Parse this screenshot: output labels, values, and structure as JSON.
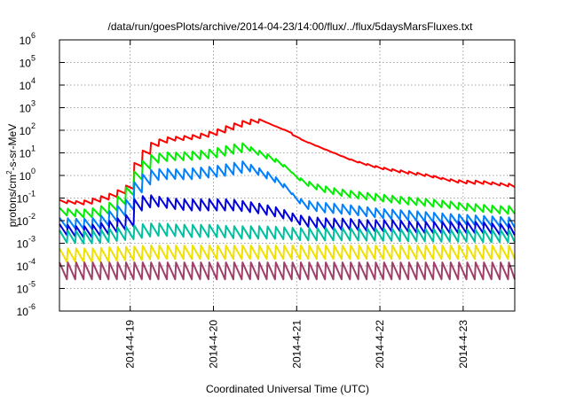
{
  "chart_data": {
    "type": "line",
    "title": "/data/run/goesPlots/archive/2014-04-23/14:00/flux/../flux/5daysMarsFluxes.txt",
    "xlabel": "Coordinated Universal Time (UTC)",
    "ylabel_base": "protons/cm",
    "ylabel_sup": "2",
    "ylabel_rest": "-s-sr-MeV",
    "yscale": "log",
    "ylim_exp": [
      -6,
      6
    ],
    "xlim": [
      -0.85,
      4.62
    ],
    "x_ticks": [
      "2014-4-19",
      "2014-4-20",
      "2014-4-21",
      "2014-4-22",
      "2014-4-23"
    ],
    "y_ticks": [
      "10",
      "10",
      "10",
      "10",
      "10",
      "10",
      "10",
      "10",
      "10",
      "10",
      "10",
      "10",
      "10"
    ],
    "y_tick_exps": [
      "-6",
      "-5",
      "-4",
      "-3",
      "-2",
      "-1",
      "0",
      "1",
      "2",
      "3",
      "4",
      "5",
      "6"
    ],
    "grid": true,
    "series": [
      {
        "color": "#ff0000",
        "points": [
          [
            -0.85,
            0.07
          ],
          [
            -0.6,
            0.06
          ],
          [
            -0.4,
            0.09
          ],
          [
            -0.2,
            0.15
          ],
          [
            -0.05,
            0.3
          ],
          [
            0.05,
            3
          ],
          [
            0.2,
            20
          ],
          [
            0.4,
            40
          ],
          [
            0.6,
            45
          ],
          [
            0.8,
            55
          ],
          [
            1.0,
            80
          ],
          [
            1.2,
            150
          ],
          [
            1.4,
            250
          ],
          [
            1.55,
            260
          ],
          [
            1.7,
            150
          ],
          [
            1.85,
            90
          ],
          [
            2.0,
            40
          ],
          [
            2.2,
            20
          ],
          [
            2.4,
            10
          ],
          [
            2.6,
            5
          ],
          [
            2.8,
            3
          ],
          [
            3.0,
            2
          ],
          [
            3.2,
            1.5
          ],
          [
            3.4,
            1.2
          ],
          [
            3.6,
            0.9
          ],
          [
            3.8,
            0.6
          ],
          [
            4.0,
            0.5
          ],
          [
            4.2,
            0.5
          ],
          [
            4.4,
            0.4
          ],
          [
            4.62,
            0.35
          ]
        ]
      },
      {
        "color": "#00ee00",
        "points": [
          [
            -0.85,
            0.025
          ],
          [
            -0.6,
            0.02
          ],
          [
            -0.4,
            0.025
          ],
          [
            -0.2,
            0.05
          ],
          [
            -0.05,
            0.2
          ],
          [
            0.05,
            1
          ],
          [
            0.2,
            5
          ],
          [
            0.4,
            7
          ],
          [
            0.6,
            7
          ],
          [
            0.8,
            8
          ],
          [
            1.0,
            10
          ],
          [
            1.2,
            15
          ],
          [
            1.35,
            18
          ],
          [
            1.5,
            10
          ],
          [
            1.7,
            5
          ],
          [
            1.85,
            2
          ],
          [
            2.0,
            0.6
          ],
          [
            2.2,
            0.3
          ],
          [
            2.4,
            0.2
          ],
          [
            2.6,
            0.15
          ],
          [
            2.8,
            0.12
          ],
          [
            3.0,
            0.1
          ],
          [
            3.2,
            0.08
          ],
          [
            3.4,
            0.07
          ],
          [
            3.6,
            0.06
          ],
          [
            3.8,
            0.05
          ],
          [
            4.0,
            0.04
          ],
          [
            4.2,
            0.035
          ],
          [
            4.4,
            0.03
          ],
          [
            4.62,
            0.03
          ]
        ]
      },
      {
        "color": "#0080ff",
        "points": [
          [
            -0.85,
            0.008
          ],
          [
            -0.6,
            0.007
          ],
          [
            -0.4,
            0.008
          ],
          [
            -0.2,
            0.02
          ],
          [
            -0.05,
            0.05
          ],
          [
            0.05,
            0.3
          ],
          [
            0.2,
            1.0
          ],
          [
            0.4,
            1.2
          ],
          [
            0.6,
            1.1
          ],
          [
            0.8,
            1.3
          ],
          [
            1.0,
            1.5
          ],
          [
            1.2,
            2.0
          ],
          [
            1.35,
            2.5
          ],
          [
            1.5,
            1.5
          ],
          [
            1.7,
            0.7
          ],
          [
            1.85,
            0.25
          ],
          [
            2.0,
            0.06
          ],
          [
            2.2,
            0.04
          ],
          [
            2.4,
            0.035
          ],
          [
            2.6,
            0.03
          ],
          [
            2.8,
            0.025
          ],
          [
            3.0,
            0.02
          ],
          [
            3.2,
            0.018
          ],
          [
            3.4,
            0.016
          ],
          [
            3.6,
            0.014
          ],
          [
            3.8,
            0.012
          ],
          [
            4.0,
            0.011
          ],
          [
            4.2,
            0.01
          ],
          [
            4.4,
            0.009
          ],
          [
            4.62,
            0.008
          ]
        ]
      },
      {
        "color": "#0000dd",
        "points": [
          [
            -0.85,
            0.004
          ],
          [
            -0.6,
            0.003
          ],
          [
            -0.4,
            0.004
          ],
          [
            -0.2,
            0.006
          ],
          [
            -0.05,
            0.01
          ],
          [
            0.05,
            0.05
          ],
          [
            0.2,
            0.08
          ],
          [
            0.4,
            0.06
          ],
          [
            0.6,
            0.05
          ],
          [
            0.8,
            0.05
          ],
          [
            1.0,
            0.05
          ],
          [
            1.2,
            0.05
          ],
          [
            1.4,
            0.04
          ],
          [
            1.6,
            0.03
          ],
          [
            1.8,
            0.02
          ],
          [
            2.0,
            0.01
          ],
          [
            2.2,
            0.008
          ],
          [
            2.4,
            0.007
          ],
          [
            2.6,
            0.007
          ],
          [
            2.8,
            0.006
          ],
          [
            3.0,
            0.006
          ],
          [
            3.2,
            0.006
          ],
          [
            3.4,
            0.005
          ],
          [
            3.6,
            0.005
          ],
          [
            3.8,
            0.005
          ],
          [
            4.0,
            0.005
          ],
          [
            4.2,
            0.005
          ],
          [
            4.4,
            0.004
          ],
          [
            4.62,
            0.004
          ]
        ]
      },
      {
        "color": "#00c0a0",
        "points": [
          [
            -0.85,
            0.002
          ],
          [
            -0.6,
            0.0018
          ],
          [
            -0.4,
            0.002
          ],
          [
            -0.2,
            0.0025
          ],
          [
            0.0,
            0.003
          ],
          [
            0.2,
            0.004
          ],
          [
            0.4,
            0.004
          ],
          [
            0.6,
            0.0035
          ],
          [
            0.8,
            0.0035
          ],
          [
            1.0,
            0.0035
          ],
          [
            1.2,
            0.003
          ],
          [
            1.4,
            0.003
          ],
          [
            1.6,
            0.003
          ],
          [
            1.8,
            0.0028
          ],
          [
            2.0,
            0.0025
          ],
          [
            2.2,
            0.0025
          ],
          [
            2.4,
            0.0025
          ],
          [
            2.6,
            0.0025
          ],
          [
            2.8,
            0.0024
          ],
          [
            3.0,
            0.0024
          ],
          [
            3.2,
            0.0023
          ],
          [
            3.4,
            0.0023
          ],
          [
            3.6,
            0.0022
          ],
          [
            3.8,
            0.0022
          ],
          [
            4.0,
            0.0022
          ],
          [
            4.2,
            0.0021
          ],
          [
            4.4,
            0.0021
          ],
          [
            4.62,
            0.0021
          ]
        ]
      },
      {
        "color": "#f0e000",
        "points": [
          [
            -0.85,
            0.0003
          ],
          [
            -0.6,
            0.0003
          ],
          [
            -0.4,
            0.0003
          ],
          [
            -0.2,
            0.00035
          ],
          [
            0.0,
            0.00035
          ],
          [
            0.2,
            0.0004
          ],
          [
            0.4,
            0.0004
          ],
          [
            0.6,
            0.0004
          ],
          [
            0.8,
            0.0004
          ],
          [
            1.0,
            0.0004
          ],
          [
            1.2,
            0.0004
          ],
          [
            1.4,
            0.0004
          ],
          [
            1.6,
            0.0004
          ],
          [
            1.8,
            0.0004
          ],
          [
            2.0,
            0.0004
          ],
          [
            2.2,
            0.0004
          ],
          [
            2.4,
            0.0004
          ],
          [
            2.6,
            0.0004
          ],
          [
            2.8,
            0.0004
          ],
          [
            3.0,
            0.0004
          ],
          [
            3.2,
            0.0004
          ],
          [
            3.4,
            0.0004
          ],
          [
            3.6,
            0.0004
          ],
          [
            3.8,
            0.0004
          ],
          [
            4.0,
            0.0004
          ],
          [
            4.2,
            0.0004
          ],
          [
            4.4,
            0.0004
          ],
          [
            4.62,
            0.0004
          ]
        ]
      },
      {
        "color": "#a0406a",
        "points": [
          [
            -0.85,
            6e-05
          ],
          [
            -0.6,
            6e-05
          ],
          [
            -0.4,
            6e-05
          ],
          [
            -0.2,
            6e-05
          ],
          [
            0.0,
            6e-05
          ],
          [
            0.2,
            6e-05
          ],
          [
            0.4,
            6e-05
          ],
          [
            0.6,
            6e-05
          ],
          [
            0.8,
            6e-05
          ],
          [
            1.0,
            6e-05
          ],
          [
            1.2,
            6e-05
          ],
          [
            1.4,
            6e-05
          ],
          [
            1.6,
            6e-05
          ],
          [
            1.8,
            6e-05
          ],
          [
            2.0,
            6e-05
          ],
          [
            2.2,
            6e-05
          ],
          [
            2.4,
            6e-05
          ],
          [
            2.6,
            6e-05
          ],
          [
            2.8,
            6e-05
          ],
          [
            3.0,
            6e-05
          ],
          [
            3.2,
            6e-05
          ],
          [
            3.4,
            6e-05
          ],
          [
            3.6,
            6e-05
          ],
          [
            3.8,
            6e-05
          ],
          [
            4.0,
            6e-05
          ],
          [
            4.2,
            6e-05
          ],
          [
            4.4,
            6e-05
          ],
          [
            4.62,
            6e-05
          ]
        ]
      }
    ]
  }
}
